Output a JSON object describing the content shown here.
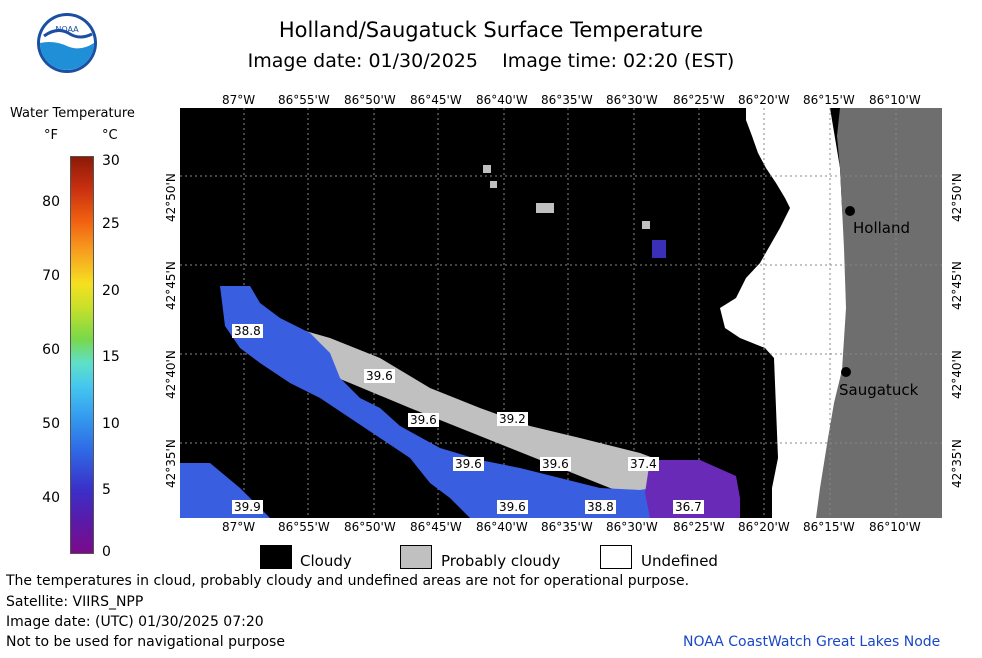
{
  "title": "Holland/Saugatuck Surface Temperature",
  "subtitle": "Image date: 01/30/2025    Image time: 02:20 (EST)",
  "colorbar": {
    "title": "Water Temperature",
    "unit_f": "°F",
    "unit_c": "°C",
    "ticks_f": [
      "80",
      "70",
      "60",
      "50",
      "40"
    ],
    "ticks_c": [
      "30",
      "25",
      "20",
      "15",
      "10",
      "5",
      "0"
    ]
  },
  "longitudes_top": [
    "87°W",
    "86°55'W",
    "86°50'W",
    "86°45'W",
    "86°40'W",
    "86°35'W",
    "86°30'W",
    "86°25'W",
    "86°20'W",
    "86°15'W",
    "86°10'W"
  ],
  "longitudes_bottom": [
    "87°W",
    "86°55'W",
    "86°50'W",
    "86°45'W",
    "86°40'W",
    "86°35'W",
    "86°30'W",
    "86°25'W",
    "86°20'W",
    "86°15'W",
    "86°10'W"
  ],
  "latitudes": [
    "42°50'N",
    "42°45'N",
    "42°40'N",
    "42°35'N"
  ],
  "cities": [
    {
      "name": "Holland"
    },
    {
      "name": "Saugatuck"
    }
  ],
  "temperature_labels": [
    "38.8",
    "39.6",
    "39.6",
    "39.2",
    "39.6",
    "39.6",
    "37.4",
    "39.9",
    "39.6",
    "38.8",
    "36.7"
  ],
  "legend": {
    "cloudy": "Cloudy",
    "probably_cloudy": "Probably cloudy",
    "undefined": "Undefined"
  },
  "notes": {
    "line1": "The temperatures in cloud, probably cloudy and undefined areas are not for operational purpose.",
    "line2": "Satellite: VIIRS_NPP",
    "line3": "Image date: (UTC) 01/30/2025  07:20",
    "line4": "Not to be used for navigational purpose"
  },
  "credit": "NOAA CoastWatch Great Lakes Node",
  "logo_text": "NOAA",
  "colors": {
    "cloudy": "#000000",
    "probably_cloudy": "#c0c0c0",
    "undefined": "#ffffff",
    "land": "#6e6e6e",
    "water_40f": "#3a5ee0",
    "water_37f": "#6a2ab8"
  }
}
